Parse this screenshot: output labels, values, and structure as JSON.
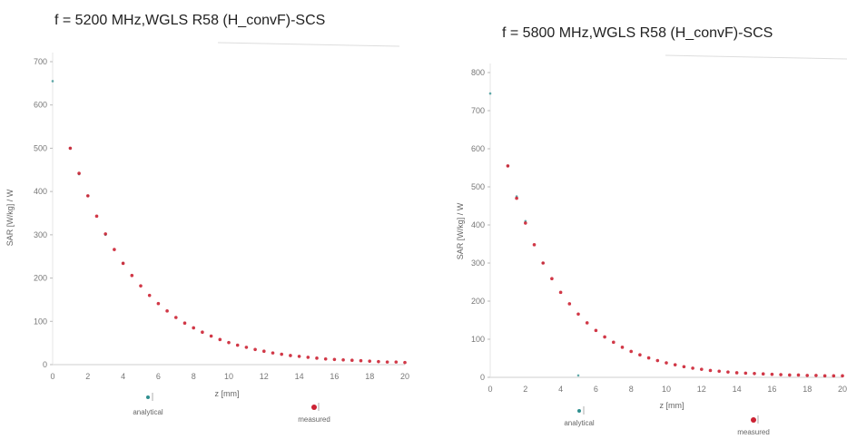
{
  "chart_data": [
    {
      "type": "scatter",
      "title": "f = 5200 MHz,WGLS R58 (H_convF)-SCS",
      "xlabel": "z [mm]",
      "ylabel": "SAR [W/kg] / W",
      "xlim": [
        0,
        20
      ],
      "ylim": [
        0,
        700
      ],
      "xticks": [
        "0",
        "2",
        "4",
        "6",
        "8",
        "10",
        "12",
        "14",
        "16",
        "18",
        "20"
      ],
      "yticks": [
        "0",
        "100",
        "200",
        "300",
        "400",
        "500",
        "600",
        "700"
      ],
      "grid": false,
      "legend": [
        "analytical",
        "measured"
      ],
      "series": [
        {
          "name": "analytical",
          "color": "#2f8f8f",
          "x": [
            0,
            1,
            1.5,
            2,
            3,
            4
          ],
          "y": [
            655,
            500,
            440,
            390,
            300,
            235
          ]
        },
        {
          "name": "measured",
          "color": "#cc2233",
          "x": [
            1,
            1.5,
            2,
            2.5,
            3,
            3.5,
            4,
            4.5,
            5,
            5.5,
            6,
            6.5,
            7,
            7.5,
            8,
            8.5,
            9,
            9.5,
            10,
            10.5,
            11,
            11.5,
            12,
            12.5,
            13,
            13.5,
            14,
            14.5,
            15,
            15.5,
            16,
            16.5,
            17,
            17.5,
            18,
            18.5,
            19,
            19.5,
            20
          ],
          "y": [
            500,
            442,
            390,
            343,
            302,
            266,
            234,
            206,
            182,
            160,
            141,
            124,
            109,
            96,
            85,
            75,
            66,
            58,
            51,
            45,
            40,
            35,
            31,
            27,
            24,
            21,
            19,
            17,
            15,
            13,
            12,
            11,
            10,
            9,
            8,
            7,
            6,
            6,
            5
          ]
        }
      ]
    },
    {
      "type": "scatter",
      "title": "f = 5800 MHz,WGLS R58 (H_convF)-SCS",
      "xlabel": "z [mm]",
      "ylabel": "SAR [W/kg] / W",
      "xlim": [
        0,
        20
      ],
      "ylim": [
        0,
        800
      ],
      "xticks": [
        "0",
        "2",
        "4",
        "6",
        "8",
        "10",
        "12",
        "14",
        "16",
        "18",
        "20"
      ],
      "yticks": [
        "0",
        "100",
        "200",
        "300",
        "400",
        "500",
        "600",
        "700",
        "800"
      ],
      "grid": false,
      "legend": [
        "analytical",
        "measured"
      ],
      "series": [
        {
          "name": "analytical",
          "color": "#2f8f8f",
          "x": [
            0,
            1,
            1.5,
            2,
            3,
            5
          ],
          "y": [
            745,
            555,
            475,
            410,
            300,
            5
          ]
        },
        {
          "name": "measured",
          "color": "#cc2233",
          "x": [
            1,
            1.5,
            2,
            2.5,
            3,
            3.5,
            4,
            4.5,
            5,
            5.5,
            6,
            6.5,
            7,
            7.5,
            8,
            8.5,
            9,
            9.5,
            10,
            10.5,
            11,
            11.5,
            12,
            12.5,
            13,
            13.5,
            14,
            14.5,
            15,
            15.5,
            16,
            16.5,
            17,
            17.5,
            18,
            18.5,
            19,
            19.5,
            20
          ],
          "y": [
            555,
            470,
            405,
            348,
            300,
            259,
            223,
            193,
            166,
            143,
            123,
            106,
            92,
            79,
            68,
            59,
            51,
            44,
            38,
            33,
            28,
            24,
            21,
            18,
            16,
            14,
            12,
            11,
            10,
            9,
            8,
            7,
            6,
            6,
            5,
            5,
            4,
            4,
            4
          ]
        }
      ]
    }
  ]
}
